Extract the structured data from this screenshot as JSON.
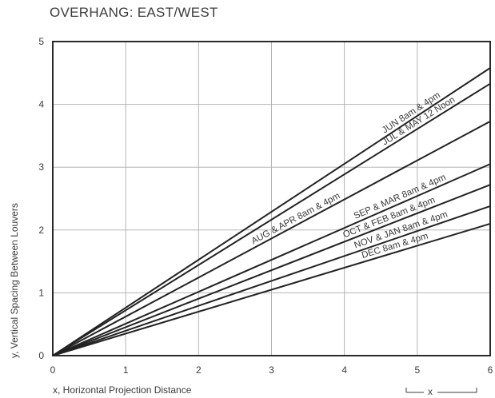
{
  "page": {
    "title": "OVERHANG: EAST/WEST"
  },
  "chart_data": {
    "type": "line",
    "title": "OVERHANG: EAST/WEST",
    "xlabel": "x, Horizontal Projection Distance",
    "ylabel": "y, Vertical Spacing Between Louvers",
    "xlim": [
      0,
      6
    ],
    "ylim": [
      0,
      5
    ],
    "xticks": [
      "0",
      "1",
      "2",
      "3",
      "4",
      "5",
      "6"
    ],
    "yticks": [
      "0",
      "1",
      "2",
      "3",
      "4",
      "5"
    ],
    "grid": true,
    "inset_label": "x",
    "series": [
      {
        "name": "JUN 8am & 4pm",
        "x": [
          0,
          6
        ],
        "y": [
          0,
          4.58
        ]
      },
      {
        "name": "JUL & MAY 12 Noon",
        "x": [
          0,
          6
        ],
        "y": [
          0,
          4.33
        ]
      },
      {
        "name": "AUG & APR 8am & 4pm",
        "x": [
          0,
          6
        ],
        "y": [
          0,
          3.73
        ]
      },
      {
        "name": "SEP & MAR 8am & 4pm",
        "x": [
          0,
          6
        ],
        "y": [
          0,
          3.05
        ]
      },
      {
        "name": "OCT & FEB 8am & 4pm",
        "x": [
          0,
          6
        ],
        "y": [
          0,
          2.72
        ]
      },
      {
        "name": "NOV & JAN 8am & 4pm",
        "x": [
          0,
          6
        ],
        "y": [
          0,
          2.38
        ]
      },
      {
        "name": "DEC 8am & 4pm",
        "x": [
          0,
          6
        ],
        "y": [
          0,
          2.1
        ]
      }
    ]
  }
}
